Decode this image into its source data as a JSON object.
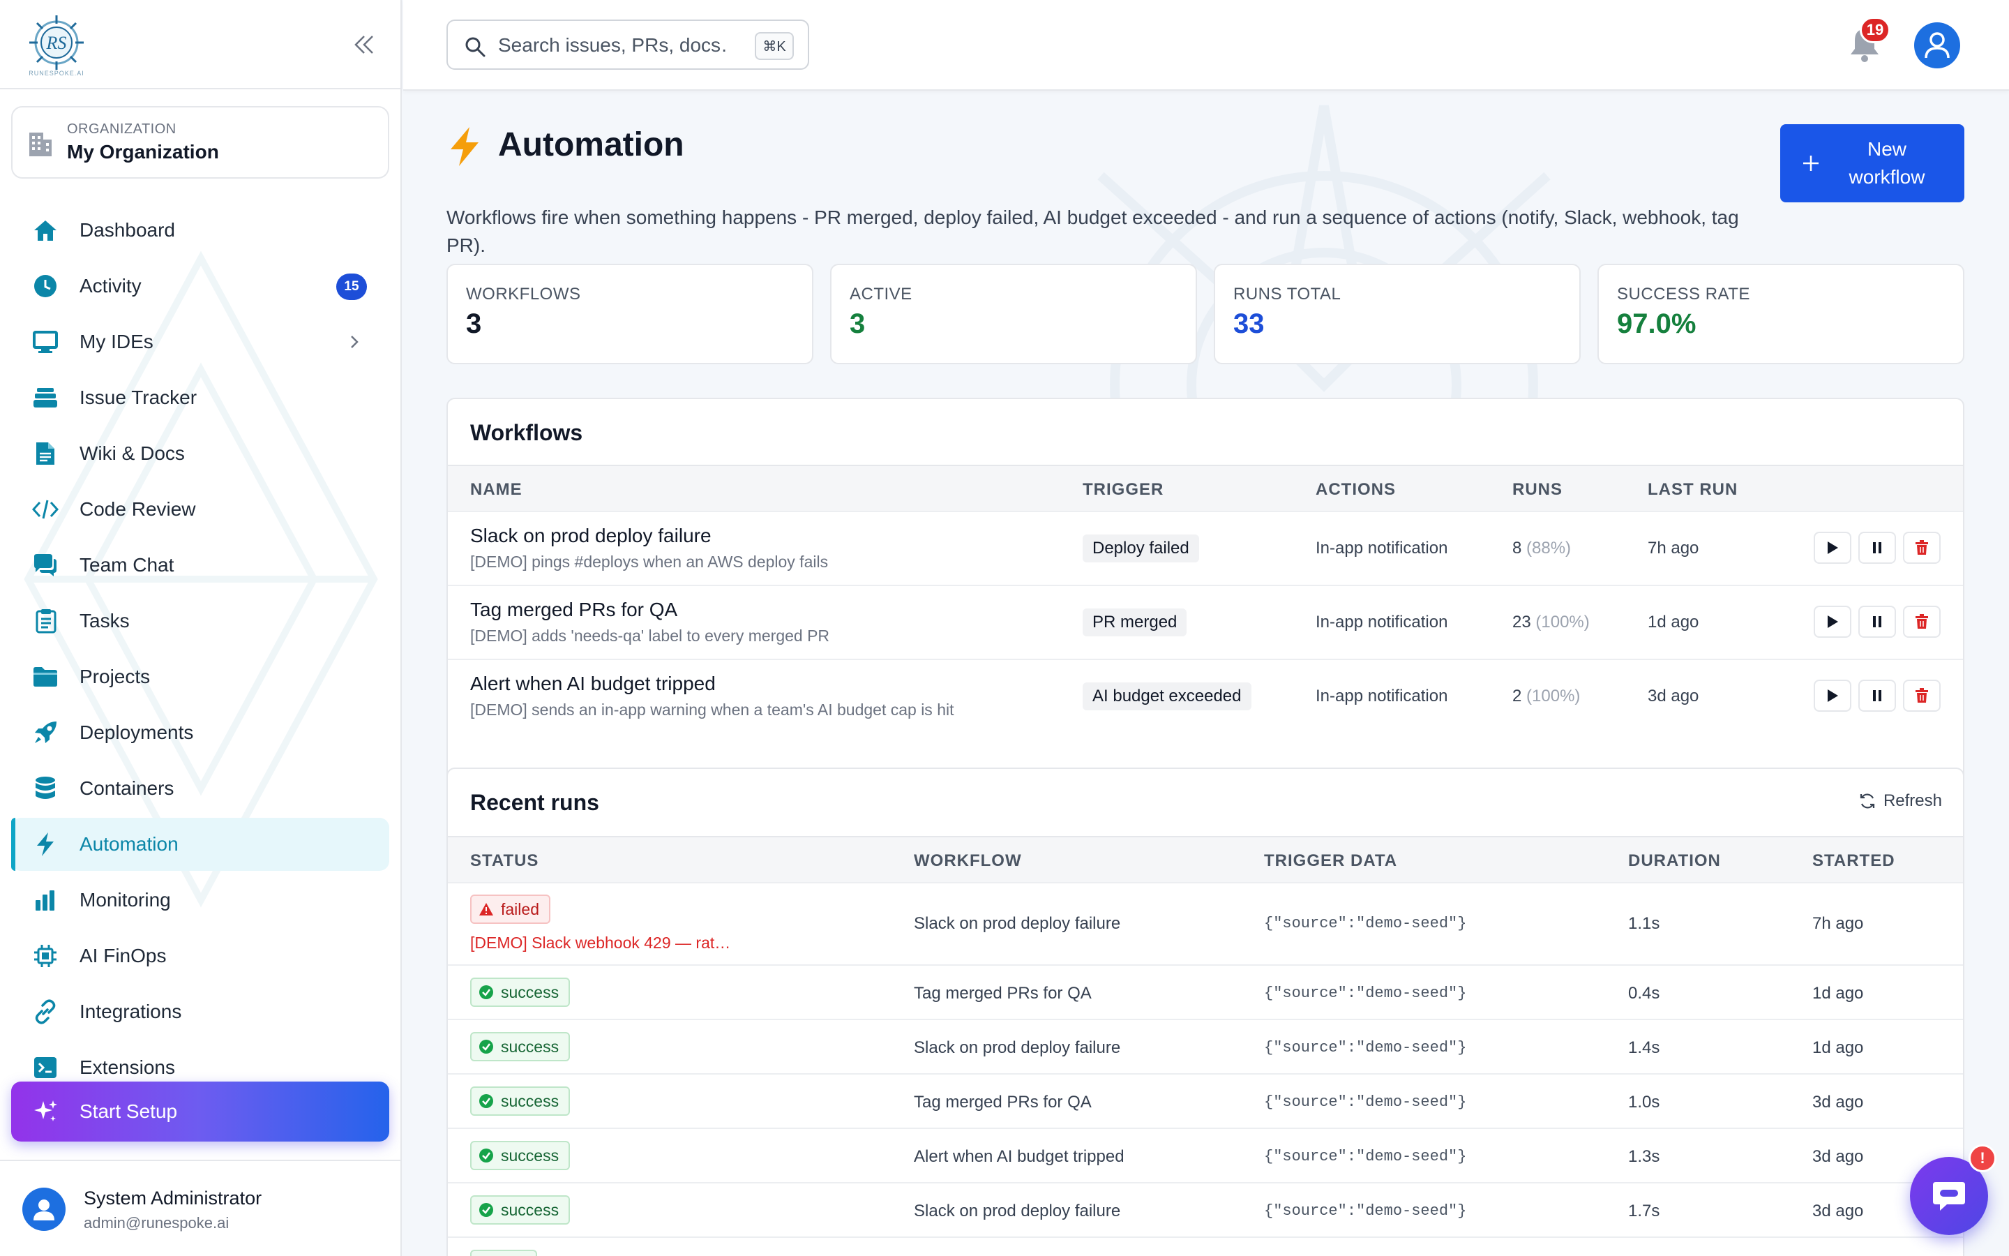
{
  "sidebar": {
    "logo_tagline": "RUNESPOKE.AI",
    "org_kicker": "ORGANIZATION",
    "org_name": "My Organization",
    "items": [
      {
        "label": "Dashboard",
        "icon": "home-icon"
      },
      {
        "label": "Activity",
        "icon": "clock-icon",
        "badge": "15"
      },
      {
        "label": "My IDEs",
        "icon": "monitor-icon"
      },
      {
        "label": "Issue Tracker",
        "icon": "layers-icon"
      },
      {
        "label": "Wiki & Docs",
        "icon": "document-icon"
      },
      {
        "label": "Code Review",
        "icon": "code-icon"
      },
      {
        "label": "Team Chat",
        "icon": "chat-icon"
      },
      {
        "label": "Tasks",
        "icon": "tasks-icon"
      },
      {
        "label": "Projects",
        "icon": "folder-icon"
      },
      {
        "label": "Deployments",
        "icon": "rocket-icon"
      },
      {
        "label": "Containers",
        "icon": "database-icon"
      },
      {
        "label": "Automation",
        "icon": "bolt-icon",
        "active": true
      },
      {
        "label": "Monitoring",
        "icon": "bar-chart-icon"
      },
      {
        "label": "AI FinOps",
        "icon": "chip-icon"
      },
      {
        "label": "Integrations",
        "icon": "link-icon"
      },
      {
        "label": "Extensions",
        "icon": "terminal-icon"
      }
    ],
    "start_setup": "Start Setup",
    "user": {
      "name": "System Administrator",
      "email": "admin@runespoke.ai"
    }
  },
  "topbar": {
    "search_placeholder": "Search issues, PRs, docs…",
    "search_shortcut": "⌘K",
    "notification_count": "19"
  },
  "page": {
    "title": "Automation",
    "description": "Workflows fire when something happens - PR merged, deploy failed, AI budget exceeded - and run a sequence of actions (notify, Slack, webhook, tag PR).",
    "new_workflow_label": "New workflow"
  },
  "stats": [
    {
      "label": "WORKFLOWS",
      "value": "3",
      "color": "#111827"
    },
    {
      "label": "ACTIVE",
      "value": "3",
      "color": "#15803d"
    },
    {
      "label": "RUNS TOTAL",
      "value": "33",
      "color": "#1d4ed8"
    },
    {
      "label": "SUCCESS RATE",
      "value": "97.0%",
      "color": "#15803d"
    }
  ],
  "workflows": {
    "title": "Workflows",
    "columns": [
      "NAME",
      "TRIGGER",
      "ACTIONS",
      "RUNS",
      "LAST RUN"
    ],
    "rows": [
      {
        "name": "Slack on prod deploy failure",
        "desc": "[DEMO] pings #deploys when an AWS deploy fails",
        "trigger": "Deploy failed",
        "actions": "In-app notification",
        "runs": "8",
        "runs_pct": "(88%)",
        "last_run": "7h ago"
      },
      {
        "name": "Tag merged PRs for QA",
        "desc": "[DEMO] adds 'needs-qa' label to every merged PR",
        "trigger": "PR merged",
        "actions": "In-app notification",
        "runs": "23",
        "runs_pct": "(100%)",
        "last_run": "1d ago"
      },
      {
        "name": "Alert when AI budget tripped",
        "desc": "[DEMO] sends an in-app warning when a team's AI budget cap is hit",
        "trigger": "AI budget exceeded",
        "actions": "In-app notification",
        "runs": "2",
        "runs_pct": "(100%)",
        "last_run": "3d ago"
      }
    ]
  },
  "recent_runs": {
    "title": "Recent runs",
    "refresh_label": "Refresh",
    "columns": [
      "STATUS",
      "WORKFLOW",
      "TRIGGER DATA",
      "DURATION",
      "STARTED"
    ],
    "rows": [
      {
        "status": "failed",
        "error": "[DEMO] Slack webhook 429 — rat…",
        "workflow": "Slack on prod deploy failure",
        "trigger_data": "{\"source\":\"demo-seed\"}",
        "duration": "1.1s",
        "started": "7h ago"
      },
      {
        "status": "success",
        "workflow": "Tag merged PRs for QA",
        "trigger_data": "{\"source\":\"demo-seed\"}",
        "duration": "0.4s",
        "started": "1d ago"
      },
      {
        "status": "success",
        "workflow": "Slack on prod deploy failure",
        "trigger_data": "{\"source\":\"demo-seed\"}",
        "duration": "1.4s",
        "started": "1d ago"
      },
      {
        "status": "success",
        "workflow": "Tag merged PRs for QA",
        "trigger_data": "{\"source\":\"demo-seed\"}",
        "duration": "1.0s",
        "started": "3d ago"
      },
      {
        "status": "success",
        "workflow": "Alert when AI budget tripped",
        "trigger_data": "{\"source\":\"demo-seed\"}",
        "duration": "1.3s",
        "started": "3d ago"
      },
      {
        "status": "success",
        "workflow": "Slack on prod deploy failure",
        "trigger_data": "{\"source\":\"demo-seed\"}",
        "duration": "1.7s",
        "started": "3d ago"
      }
    ]
  },
  "chat_fab_badge": "!",
  "colors": {
    "accent": "#0ea5c6",
    "primary": "#1a56e8",
    "success": "#15803d",
    "danger": "#dc2626"
  }
}
